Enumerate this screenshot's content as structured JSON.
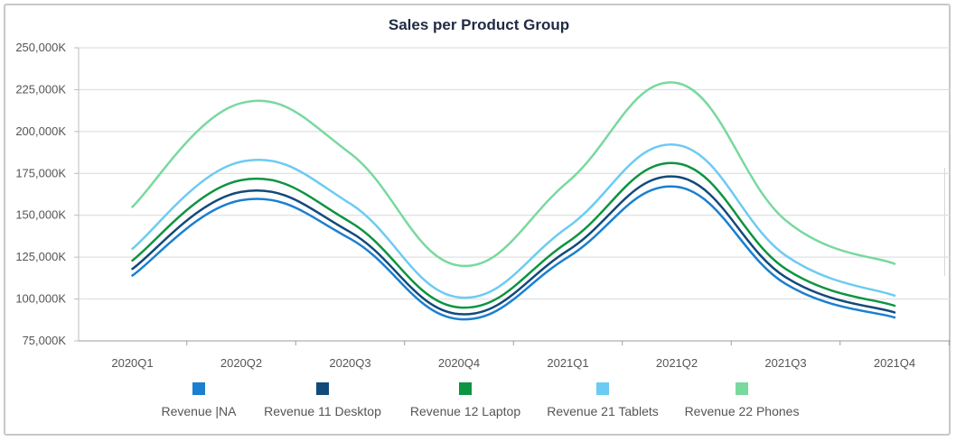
{
  "chart_data": {
    "type": "line",
    "title": "Sales per Product Group",
    "xlabel": "",
    "ylabel": "",
    "categories": [
      "2020Q1",
      "2020Q2",
      "2020Q3",
      "2020Q4",
      "2021Q1",
      "2021Q2",
      "2021Q3",
      "2021Q4"
    ],
    "y_ticks": [
      "75,000K",
      "100,000K",
      "125,000K",
      "150,000K",
      "175,000K",
      "200,000K",
      "225,000K",
      "250,000K"
    ],
    "ylim": [
      75000,
      250000
    ],
    "grid": true,
    "legend_position": "bottom",
    "series": [
      {
        "name": "Revenue |NA",
        "color": "#1a7fd1",
        "values": [
          114000,
          159000,
          136000,
          88000,
          125000,
          167000,
          109000,
          89000
        ]
      },
      {
        "name": "Revenue 11 Desktop",
        "color": "#124a7a",
        "values": [
          118000,
          164000,
          140000,
          91000,
          129000,
          173000,
          113000,
          92000
        ]
      },
      {
        "name": "Revenue 12 Laptop",
        "color": "#0d9441",
        "values": [
          123000,
          171000,
          146000,
          95000,
          134000,
          181000,
          118000,
          96000
        ]
      },
      {
        "name": "Revenue 21 Tablets",
        "color": "#6ccbf3",
        "values": [
          130000,
          182000,
          157000,
          101000,
          143000,
          192000,
          126000,
          102000
        ]
      },
      {
        "name": "Revenue 22 Phones",
        "color": "#78d99e",
        "values": [
          155000,
          217000,
          187000,
          120000,
          170000,
          229000,
          147000,
          121000
        ]
      }
    ]
  }
}
